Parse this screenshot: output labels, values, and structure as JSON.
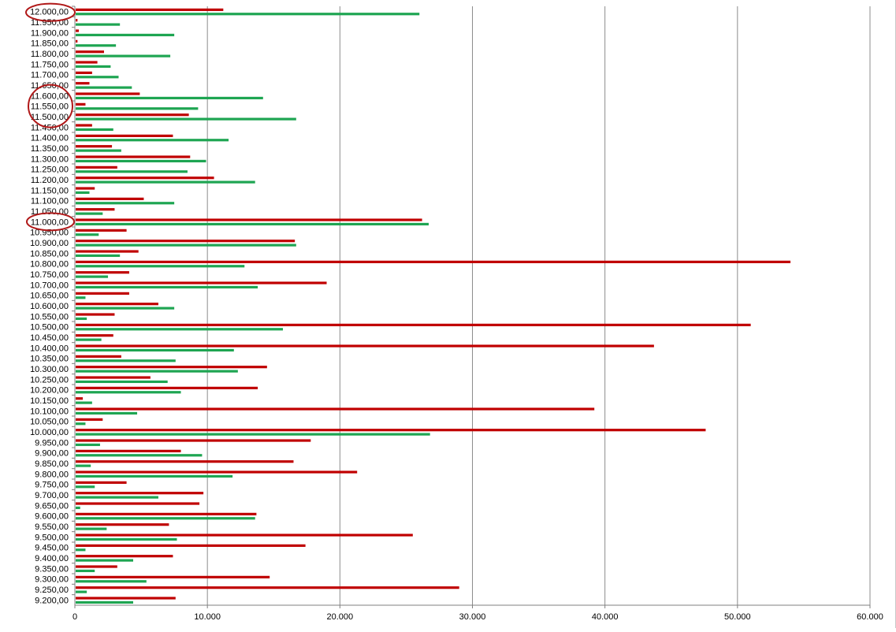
{
  "chart_data": {
    "type": "bar",
    "orientation": "horizontal",
    "grid": true,
    "legend": "none",
    "xlim": [
      0,
      60000
    ],
    "x_ticks": [
      0,
      10000,
      20000,
      30000,
      40000,
      50000,
      60000
    ],
    "x_tick_labels": [
      "0",
      "10.000",
      "20.000",
      "30.000",
      "40.000",
      "50.000",
      "60.000"
    ],
    "categories": [
      "9.200,00",
      "9.250,00",
      "9.300,00",
      "9.350,00",
      "9.400,00",
      "9.450,00",
      "9.500,00",
      "9.550,00",
      "9.600,00",
      "9.650,00",
      "9.700,00",
      "9.750,00",
      "9.800,00",
      "9.850,00",
      "9.900,00",
      "9.950,00",
      "10.000,00",
      "10.050,00",
      "10.100,00",
      "10.150,00",
      "10.200,00",
      "10.250,00",
      "10.300,00",
      "10.350,00",
      "10.400,00",
      "10.450,00",
      "10.500,00",
      "10.550,00",
      "10.600,00",
      "10.650,00",
      "10.700,00",
      "10.750,00",
      "10.800,00",
      "10.850,00",
      "10.900,00",
      "10.950,00",
      "11.000,00",
      "11.050,00",
      "11.100,00",
      "11.150,00",
      "11.200,00",
      "11.250,00",
      "11.300,00",
      "11.350,00",
      "11.400,00",
      "11.450,00",
      "11.500,00",
      "11.550,00",
      "11.600,00",
      "11.650,00",
      "11.700,00",
      "11.750,00",
      "11.800,00",
      "11.850,00",
      "11.900,00",
      "11.950,00",
      "12.000,00"
    ],
    "series": [
      {
        "color": "#c00000",
        "values": [
          7600,
          29000,
          14700,
          3200,
          7400,
          17400,
          25500,
          7100,
          13700,
          9400,
          9700,
          3900,
          21300,
          16500,
          8000,
          17800,
          47600,
          2100,
          39200,
          600,
          13800,
          5700,
          14500,
          3500,
          43700,
          2900,
          51000,
          3000,
          6300,
          4100,
          19000,
          4100,
          54000,
          4800,
          16600,
          3900,
          26200,
          3000,
          5200,
          1500,
          10500,
          3200,
          8700,
          2800,
          7400,
          1300,
          8600,
          800,
          4900,
          1100,
          1300,
          1700,
          2200,
          200,
          300,
          200,
          11200
        ]
      },
      {
        "color": "#1ea552",
        "values": [
          4400,
          900,
          5400,
          1500,
          4400,
          800,
          7700,
          2400,
          13600,
          400,
          6300,
          1500,
          11900,
          1200,
          9600,
          1900,
          26800,
          800,
          4700,
          1300,
          8000,
          7000,
          12300,
          7600,
          12000,
          2000,
          15700,
          900,
          7500,
          800,
          13800,
          2500,
          12800,
          3400,
          16700,
          1800,
          26700,
          2100,
          7500,
          1100,
          13600,
          8500,
          9900,
          3500,
          11600,
          2900,
          16700,
          9300,
          14200,
          4300,
          3300,
          2700,
          7200,
          3100,
          7500,
          3400,
          26000
        ]
      }
    ]
  }
}
